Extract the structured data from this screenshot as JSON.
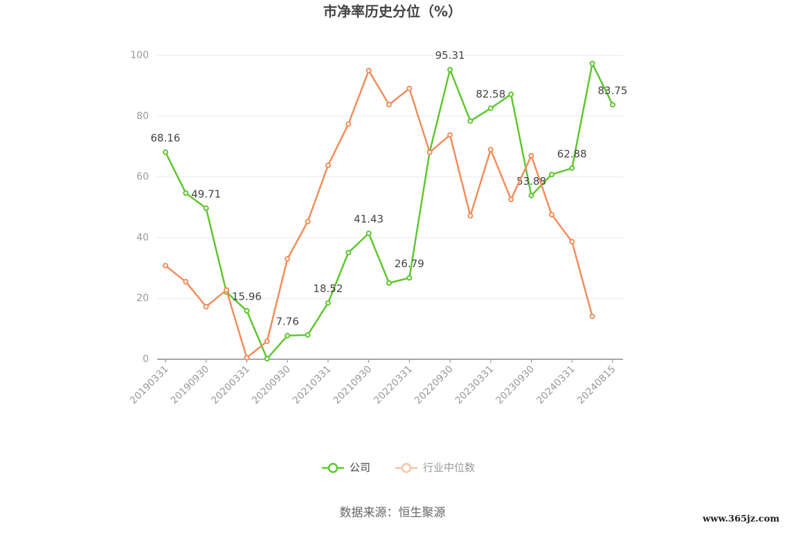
{
  "chart_data": {
    "type": "line",
    "title": "市净率历史分位（%）",
    "categories": [
      "20190331",
      null,
      "20190930",
      null,
      "20200331",
      null,
      "20200930",
      null,
      "20210331",
      null,
      "20210930",
      null,
      "20220331",
      null,
      "20220930",
      null,
      "20230331",
      null,
      "20230930",
      null,
      "20240331",
      null,
      "20240815"
    ],
    "series": [
      {
        "name": "公司",
        "color": "#5cc72c",
        "values": [
          68.16,
          54.7,
          49.71,
          22.1,
          15.96,
          0.2,
          7.76,
          8.0,
          18.52,
          35.1,
          41.43,
          25.1,
          26.79,
          68.3,
          95.31,
          78.4,
          82.58,
          87.2,
          53.88,
          60.8,
          62.88,
          97.3,
          83.75
        ],
        "value_labels": [
          "68.16",
          null,
          "49.71",
          null,
          "15.96",
          null,
          "7.76",
          null,
          "18.52",
          null,
          "41.43",
          null,
          "26.79",
          null,
          "95.31",
          null,
          "82.58",
          null,
          "53.88",
          null,
          "62.88",
          null,
          "83.75"
        ]
      },
      {
        "name": "行业中位数",
        "color": "#f28c5a",
        "values": [
          30.8,
          25.5,
          17.3,
          22.8,
          0.5,
          5.9,
          33.0,
          45.3,
          63.8,
          77.4,
          95.0,
          83.8,
          89.1,
          68.1,
          73.8,
          47.2,
          69.0,
          52.6,
          67.0,
          47.6,
          38.7,
          14.1,
          null
        ]
      }
    ],
    "ylim": [
      0,
      100
    ],
    "yticks": [
      0,
      20,
      40,
      60,
      80,
      100
    ],
    "grid": true,
    "legend": "bottom",
    "source": "数据来源：恒生聚源",
    "watermark": "www.365jz.com"
  }
}
